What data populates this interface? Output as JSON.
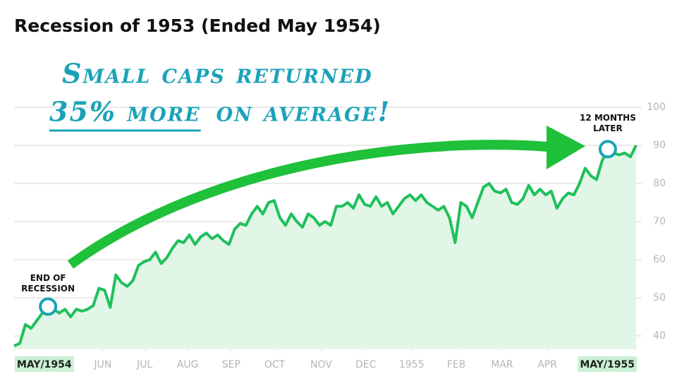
{
  "chart_data": {
    "type": "line",
    "title": "Recession of 1953 (Ended May 1954)",
    "headline": [
      "Small caps returned",
      "35% more",
      "on average!"
    ],
    "annotations": [
      "END OF RECESSION",
      "12 MONTHS LATER"
    ],
    "color": "#1fc05a",
    "values": [
      37.4,
      38,
      43,
      42,
      44,
      46,
      47.7,
      47,
      46,
      47,
      45,
      47,
      46.5,
      47,
      48,
      52.5,
      52,
      47.5,
      56,
      54,
      53,
      54.5,
      58.5,
      59.5,
      60,
      62,
      59,
      60.5,
      63,
      65,
      64.5,
      66.5,
      64,
      66,
      67,
      65.5,
      66.5,
      65,
      64,
      68,
      69.5,
      69,
      72,
      74,
      72,
      75,
      75.5,
      71,
      69,
      72,
      70,
      68.5,
      72,
      71,
      69,
      70,
      69,
      74,
      74,
      75,
      73.5,
      77,
      74.5,
      74,
      76.5,
      74,
      75,
      72,
      74,
      76,
      77,
      75.5,
      77,
      75,
      74,
      73,
      74,
      71,
      64.5,
      75,
      74,
      71,
      75,
      79,
      80,
      78,
      77.5,
      78.5,
      75,
      74.5,
      76,
      79.5,
      77,
      78.5,
      77,
      78,
      73.5,
      76,
      77.5,
      77,
      80,
      84,
      82,
      81,
      86,
      89,
      88,
      87.5,
      88,
      87,
      90
    ],
    "xlim": [
      0,
      110
    ],
    "xticks": [
      {
        "value": 0,
        "label": "MAY/1954"
      },
      {
        "value": 15.7,
        "label": "JUN"
      },
      {
        "value": 23.1,
        "label": "JUL"
      },
      {
        "value": 30.7,
        "label": "AUG"
      },
      {
        "value": 38.4,
        "label": "SEP"
      },
      {
        "value": 46.1,
        "label": "OCT"
      },
      {
        "value": 54.3,
        "label": "NOV"
      },
      {
        "value": 62.2,
        "label": "DEC"
      },
      {
        "value": 70.3,
        "label": "1955"
      },
      {
        "value": 78.2,
        "label": "FEB"
      },
      {
        "value": 86.3,
        "label": "MAR"
      },
      {
        "value": 94.3,
        "label": "APR"
      },
      {
        "value": 110,
        "label": "MAY/1955"
      }
    ],
    "ylim": [
      36.5,
      100
    ],
    "yticks": [
      40,
      50,
      60,
      70,
      80,
      90,
      100
    ],
    "grid": true
  }
}
